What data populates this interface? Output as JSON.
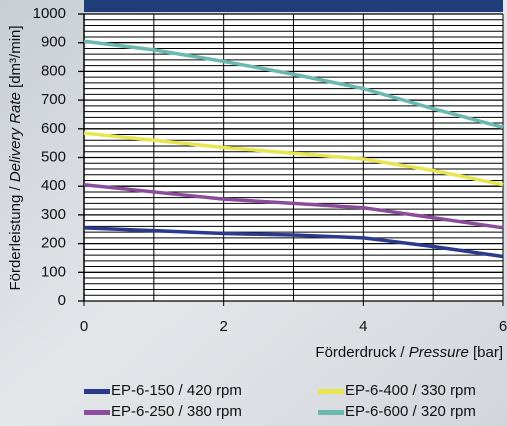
{
  "chart_data": {
    "type": "line",
    "x": [
      0,
      1,
      2,
      3,
      4,
      5,
      6
    ],
    "xlim": [
      0,
      6
    ],
    "xticks": [
      0,
      2,
      4,
      6
    ],
    "ylim": [
      0,
      1000
    ],
    "yticks": [
      0,
      100,
      200,
      300,
      400,
      500,
      600,
      700,
      800,
      900,
      1000
    ],
    "grid": true,
    "xlabel": {
      "text": "Förderdruck / ",
      "italic": "Pressure",
      "unit": " [bar]"
    },
    "ylabel": {
      "text": "Förderleistung / ",
      "italic": "Delivery Rate",
      "unit": " [dm³/min]"
    },
    "series": [
      {
        "name": "EP-6-150 / 420 rpm",
        "color": "#2b3a8e",
        "values": [
          255,
          245,
          235,
          230,
          220,
          190,
          155
        ]
      },
      {
        "name": "EP-6-400 / 330 rpm",
        "color": "#e8e650",
        "values": [
          585,
          560,
          535,
          515,
          495,
          455,
          405
        ]
      },
      {
        "name": "EP-6-250 / 380 rpm",
        "color": "#8b4c9c",
        "values": [
          405,
          380,
          355,
          340,
          325,
          290,
          255
        ]
      },
      {
        "name": "EP-6-600 / 320 rpm",
        "color": "#6bb8b0",
        "values": [
          905,
          875,
          835,
          790,
          740,
          670,
          605
        ]
      }
    ]
  }
}
